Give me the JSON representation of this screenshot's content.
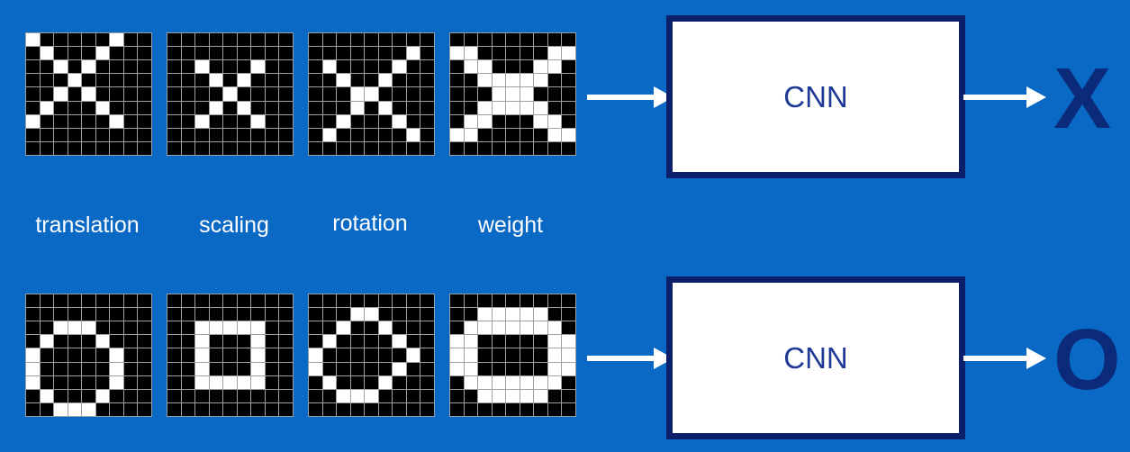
{
  "labels": [
    "translation",
    "scaling",
    "rotation",
    "weight"
  ],
  "cnn_label_top": "CNN",
  "cnn_label_bottom": "CNN",
  "output_top": "X",
  "output_bottom": "O",
  "colors": {
    "background": "#0a69c4",
    "box_border": "#0b1f6b",
    "box_text": "#1e3a96",
    "output": "#0b2b7a",
    "pixel_on": "#ffffff",
    "pixel_off": "#000000"
  },
  "grids": {
    "x_translation": [
      "100000100",
      "010001000",
      "001010000",
      "000100000",
      "001010000",
      "010001000",
      "100000100",
      "000000000",
      "000000000"
    ],
    "x_scaling": [
      "000000000",
      "000000000",
      "001000100",
      "000101000",
      "000010000",
      "000101000",
      "001000100",
      "000000000",
      "000000000"
    ],
    "x_rotation": [
      "000000000",
      "000000010",
      "010000100",
      "001001000",
      "000110000",
      "000101000",
      "001000100",
      "010000010",
      "000000000"
    ],
    "x_weight": [
      "000000000",
      "110000011",
      "011000110",
      "001111100",
      "000111000",
      "001111100",
      "011000110",
      "110000011",
      "000000000"
    ],
    "o_translation": [
      "000000000",
      "000000000",
      "001110000",
      "010001000",
      "100000100",
      "100000100",
      "100000100",
      "010001000",
      "001110000"
    ],
    "o_scaling": [
      "000000000",
      "000000000",
      "001111100",
      "001000100",
      "001000100",
      "001000100",
      "001111100",
      "000000000",
      "000000000"
    ],
    "o_rotation": [
      "000000000",
      "000110000",
      "001001000",
      "010000100",
      "100000010",
      "100000100",
      "010001000",
      "001110000",
      "000000000"
    ],
    "o_weight": [
      "000000000",
      "001111100",
      "011111110",
      "110000011",
      "110000011",
      "110000011",
      "011111110",
      "001111100",
      "000000000"
    ]
  }
}
